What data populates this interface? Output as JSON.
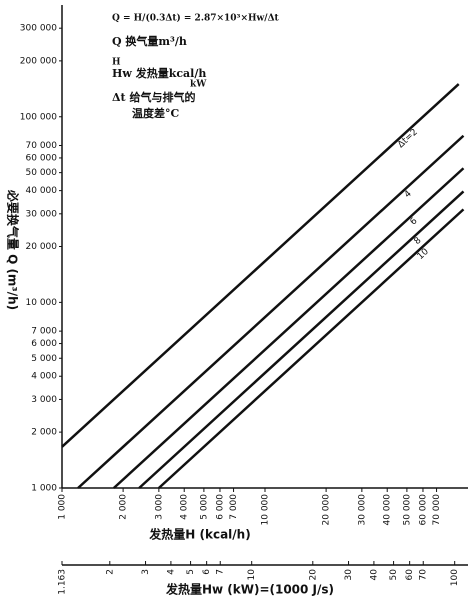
{
  "chart_data": {
    "type": "line",
    "log_x": true,
    "log_y": true,
    "grid": false,
    "color": "#111111",
    "y_label": "必要换气量 Q (m³/h)",
    "x_label": "发热量H (kcal/h)",
    "x2_label": "发热量Hw (kW)=(1000 J/s)",
    "annotations": [
      "Q = H/(0.3Δt) = 2.87×10³×Hw/Δt",
      "Q 换气量m³/h",
      "H",
      "Hw 发热量kcal/h",
      "kW",
      "Δt 给气与排气的",
      "温度差°C"
    ],
    "xlim": [
      1000,
      100000
    ],
    "ylim": [
      1000,
      400000
    ],
    "x2lim": [
      1.163,
      116.3
    ],
    "xticks": [
      {
        "value": 1000,
        "label": "1 000"
      },
      {
        "value": 2000,
        "label": "2 000"
      },
      {
        "value": 3000,
        "label": "3 000"
      },
      {
        "value": 4000,
        "label": "4 000"
      },
      {
        "value": 5000,
        "label": "5 000"
      },
      {
        "value": 6000,
        "label": "6 000"
      },
      {
        "value": 7000,
        "label": "7 000"
      },
      {
        "value": 10000,
        "label": "10 000"
      },
      {
        "value": 20000,
        "label": "20 000"
      },
      {
        "value": 30000,
        "label": "30 000"
      },
      {
        "value": 40000,
        "label": "40 000"
      },
      {
        "value": 50000,
        "label": "50 000"
      },
      {
        "value": 60000,
        "label": "60 000"
      },
      {
        "value": 70000,
        "label": "70 000"
      }
    ],
    "x2ticks": [
      1.163,
      2,
      3,
      4,
      5,
      6,
      7,
      10,
      20,
      30,
      40,
      50,
      60,
      70,
      100
    ],
    "yticks": [
      {
        "value": 1000,
        "label": "1 000"
      },
      {
        "value": 2000,
        "label": "2 000"
      },
      {
        "value": 3000,
        "label": "3 000"
      },
      {
        "value": 4000,
        "label": "4 000"
      },
      {
        "value": 5000,
        "label": "5 000"
      },
      {
        "value": 6000,
        "label": "6 000"
      },
      {
        "value": 7000,
        "label": "7 000"
      },
      {
        "value": 10000,
        "label": "10 000"
      },
      {
        "value": 20000,
        "label": "20 000"
      },
      {
        "value": 30000,
        "label": "30 000"
      },
      {
        "value": 40000,
        "label": "40 000"
      },
      {
        "value": 50000,
        "label": "50 000"
      },
      {
        "value": 60000,
        "label": "60 000"
      },
      {
        "value": 70000,
        "label": "70 000"
      },
      {
        "value": 100000,
        "label": "100 000"
      },
      {
        "value": 200000,
        "label": "200 000"
      },
      {
        "value": 300000,
        "label": "300 000"
      }
    ],
    "series": [
      {
        "name": "Δt=2",
        "x": [
          1000,
          90000
        ],
        "values": [
          1667,
          150000
        ]
      },
      {
        "name": "4",
        "x": [
          1200,
          95000
        ],
        "values": [
          1000,
          79000
        ]
      },
      {
        "name": "6",
        "x": [
          1800,
          95000
        ],
        "values": [
          1000,
          52800
        ]
      },
      {
        "name": "8",
        "x": [
          2400,
          95000
        ],
        "values": [
          1000,
          39600
        ]
      },
      {
        "name": "10",
        "x": [
          3000,
          95000
        ],
        "values": [
          1000,
          31700
        ]
      }
    ]
  }
}
